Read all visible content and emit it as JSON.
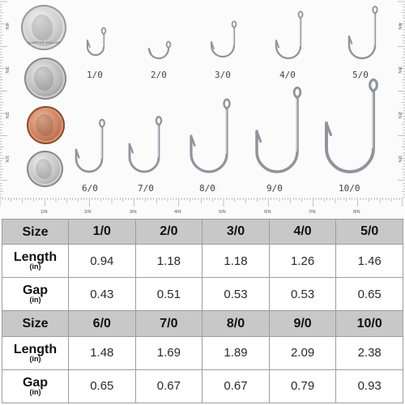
{
  "ruler": {
    "left_labels": [
      "4IN",
      "3IN",
      "2IN",
      "1IN"
    ],
    "right_labels": [
      "4IN",
      "3IN",
      "2IN",
      "1IN"
    ],
    "bottom_labels": [
      "1IN",
      "2IN",
      "3IN",
      "4IN",
      "5IN",
      "6IN",
      "7IN",
      "8IN"
    ]
  },
  "coins": {
    "quarter_text": "QUARTER DOLLAR",
    "nickel_text": "",
    "penny_text": "",
    "dime_text": ""
  },
  "hooks": [
    "1/0",
    "2/0",
    "3/0",
    "4/0",
    "5/0",
    "6/0",
    "7/0",
    "8/0",
    "9/0",
    "10/0"
  ],
  "table": {
    "rows": [
      {
        "type": "header",
        "label": "Size",
        "values": [
          "1/0",
          "2/0",
          "3/0",
          "4/0",
          "5/0"
        ]
      },
      {
        "type": "data",
        "label": "Length",
        "unit": "(in)",
        "values": [
          "0.94",
          "1.18",
          "1.18",
          "1.26",
          "1.46"
        ]
      },
      {
        "type": "data",
        "label": "Gap",
        "unit": "(in)",
        "values": [
          "0.43",
          "0.51",
          "0.53",
          "0.53",
          "0.65"
        ]
      },
      {
        "type": "header",
        "label": "Size",
        "values": [
          "6/0",
          "7/0",
          "8/0",
          "9/0",
          "10/0"
        ]
      },
      {
        "type": "data",
        "label": "Length",
        "unit": "(in)",
        "values": [
          "1.48",
          "1.69",
          "1.89",
          "2.09",
          "2.38"
        ]
      },
      {
        "type": "data",
        "label": "Gap",
        "unit": "(in)",
        "values": [
          "0.65",
          "0.67",
          "0.67",
          "0.79",
          "0.93"
        ]
      }
    ]
  },
  "colors": {
    "header_bg": "#c8c8c8",
    "border": "#9d9d9d",
    "hook_stroke": "#8f959b"
  }
}
